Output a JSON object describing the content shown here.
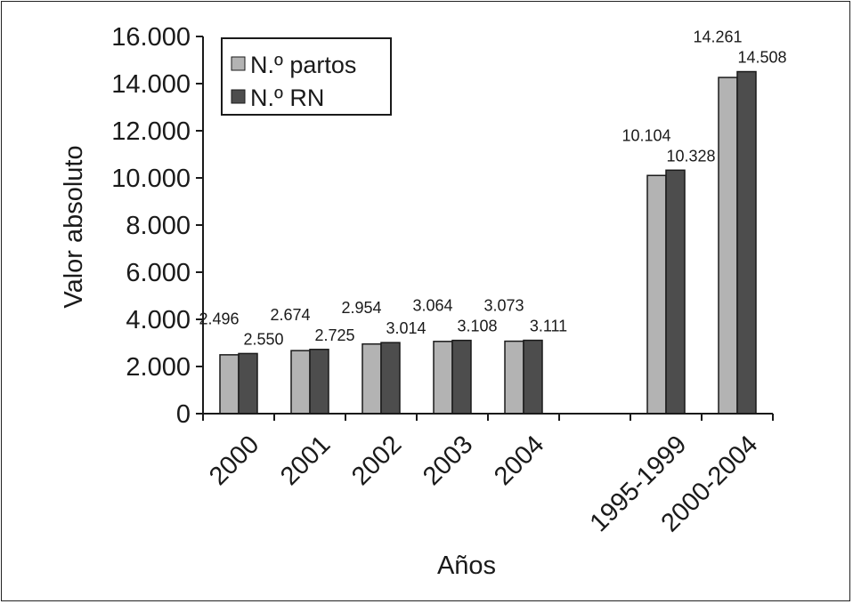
{
  "chart_data": {
    "type": "bar",
    "title": "",
    "xlabel": "Años",
    "ylabel": "Valor absoluto",
    "ylim": [
      0,
      16000
    ],
    "yticks": [
      0,
      2000,
      4000,
      6000,
      8000,
      10000,
      12000,
      14000,
      16000
    ],
    "ytick_labels": [
      "0",
      "2.000",
      "4.000",
      "6.000",
      "8.000",
      "10.000",
      "12.000",
      "14.000",
      "16.000"
    ],
    "grid": false,
    "legend_position": "top-left",
    "slots": [
      "2000",
      "2001",
      "2002",
      "2003",
      "2004",
      "",
      "1995-1999",
      "2000-2004"
    ],
    "categories": [
      "2000",
      "2001",
      "2002",
      "2003",
      "2004",
      "1995-1999",
      "2000-2004"
    ],
    "series": [
      {
        "name": "N.º partos",
        "color": "#b3b3b3",
        "values": [
          2496,
          2674,
          2954,
          3064,
          3073,
          10104,
          14261
        ],
        "labels": [
          "2.496",
          "2.674",
          "2.954",
          "3.064",
          "3.073",
          "10.104",
          "14.261"
        ]
      },
      {
        "name": "N.º RN",
        "color": "#4d4d4d",
        "values": [
          2550,
          2725,
          3014,
          3108,
          3111,
          10328,
          14508
        ],
        "labels": [
          "2.550",
          "2.725",
          "3.014",
          "3.108",
          "3.111",
          "10.328",
          "14.508"
        ]
      }
    ]
  }
}
